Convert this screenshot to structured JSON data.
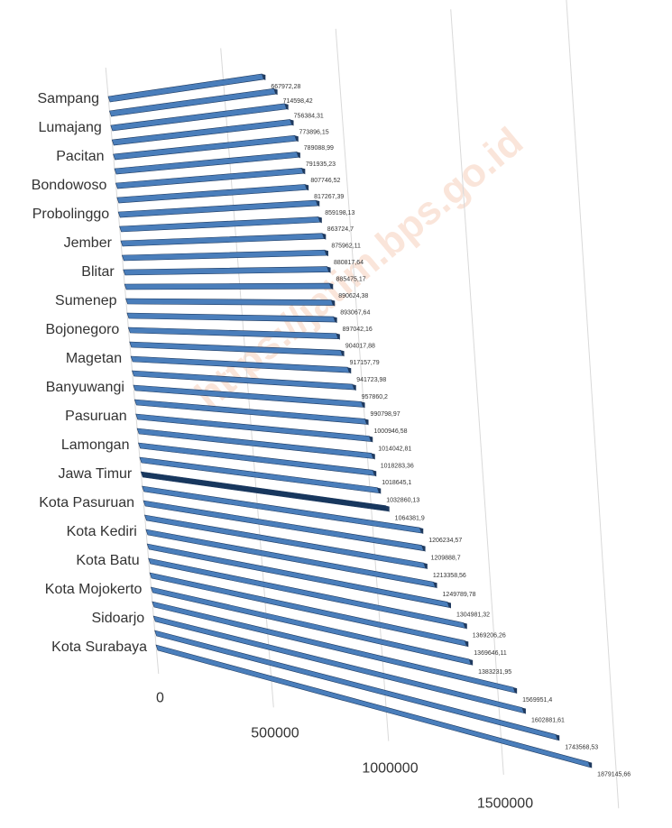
{
  "chart_data": {
    "type": "bar3d",
    "categories": [
      "Sampang",
      null,
      "Lumajang",
      null,
      "Pacitan",
      null,
      "Bondowoso",
      null,
      "Probolinggo",
      null,
      "Jember",
      null,
      "Blitar",
      null,
      "Sumenep",
      null,
      "Bojonegoro",
      null,
      "Magetan",
      null,
      "Banyuwangi",
      null,
      "Pasuruan",
      null,
      "Lamongan",
      null,
      "Jawa Timur",
      null,
      "Kota Pasuruan",
      null,
      "Kota Kediri",
      null,
      "Kota Batu",
      null,
      "Kota Mojokerto",
      null,
      "Sidoarjo",
      null,
      "Kota Surabaya"
    ],
    "values": [
      667972.28,
      714598.42,
      756384.31,
      773896.15,
      789088.99,
      791935.23,
      807746.52,
      817267.39,
      859198.13,
      863724.7,
      875962.11,
      880817.64,
      885475.17,
      890624.38,
      893067.64,
      897042.16,
      904017.88,
      917157.79,
      941723.98,
      957860.2,
      990798.97,
      1000946.58,
      1014042.81,
      1018283.36,
      1018645.1,
      1032860.13,
      1064381.9,
      1206234.57,
      1209888.7,
      1213358.56,
      1249789.78,
      1304981.32,
      1369206.26,
      1369646.11,
      1383231.95,
      1569951.4,
      1602881.61,
      1743568.53,
      1879145.66
    ],
    "value_labels": [
      "667972,28",
      "714598,42",
      "756384,31",
      "773896,15",
      "789088,99",
      "791935,23",
      "807746,52",
      "817267,39",
      "859198,13",
      "863724,7",
      "875962,11",
      "880817,64",
      "885475,17",
      "890624,38",
      "893067,64",
      "897042,16",
      "904017,88",
      "917157,79",
      "941723,98",
      "957860,2",
      "990798,97",
      "1000946,58",
      "1014042,81",
      "1018283,36",
      "1018645,1",
      "1032860,13",
      "1064381,9",
      "1206234,57",
      "1209888,7",
      "1213358,56",
      "1249789,78",
      "1304981,32",
      "1369206,26",
      "1369646,11",
      "1383231,95",
      "1569951,4",
      "1602881,61",
      "1743568,53",
      "1879145,66"
    ],
    "color": "#4a7ebb",
    "highlight_color": "#17375e",
    "highlight_index": 26,
    "xlim": [
      0,
      2000000
    ],
    "xticks": [
      0,
      500000,
      1000000,
      1500000,
      2000000
    ],
    "grid": true,
    "watermark": "https://jatim.bps.go.id"
  }
}
